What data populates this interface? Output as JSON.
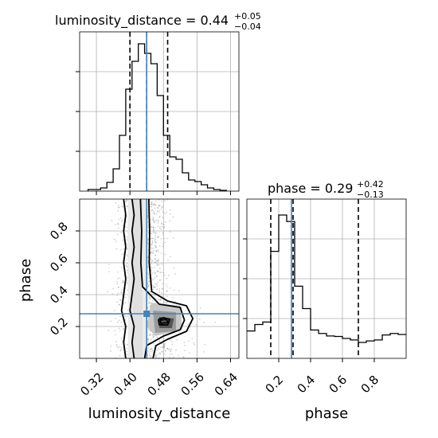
{
  "chart_data": {
    "type": "corner",
    "parameters": [
      "luminosity_distance",
      "phase"
    ],
    "xlabel_left": "luminosity_distance",
    "xlabel_right": "phase",
    "ylabel_left": "phase",
    "truth_color": "#4682b4",
    "line_color": "#000000",
    "grid": true,
    "luminosity_distance": {
      "title_prefix": "luminosity_distance = ",
      "median_label": "0.44",
      "plus_label": "+0.05",
      "minus_label": "−0.04",
      "range": [
        0.28,
        0.66
      ],
      "ticks": [
        0.32,
        0.4,
        0.48,
        0.56,
        0.64
      ],
      "tick_labels": [
        "0.32",
        "0.40",
        "0.48",
        "0.56",
        "0.64"
      ],
      "quantiles": [
        0.4,
        0.44,
        0.49
      ],
      "truth": 0.44,
      "hist_edges": [
        0.3,
        0.315,
        0.33,
        0.345,
        0.36,
        0.375,
        0.39,
        0.405,
        0.42,
        0.435,
        0.45,
        0.465,
        0.48,
        0.495,
        0.51,
        0.525,
        0.54,
        0.555,
        0.57,
        0.585,
        0.6,
        0.615,
        0.63
      ],
      "hist_counts": [
        2,
        2,
        4,
        11,
        28,
        70,
        128,
        163,
        185,
        173,
        160,
        120,
        70,
        43,
        40,
        23,
        14,
        12,
        8,
        4,
        2,
        1
      ],
      "hist_ymax": 200
    },
    "phase": {
      "title_prefix": "phase = ",
      "median_label": "0.29",
      "plus_label": "+0.42",
      "minus_label": "−0.13",
      "range": [
        0.0,
        1.0
      ],
      "ticks": [
        0.2,
        0.4,
        0.6,
        0.8
      ],
      "tick_labels": [
        "0.2",
        "0.4",
        "0.6",
        "0.8"
      ],
      "quantiles": [
        0.15,
        0.29,
        0.7
      ],
      "truth": 0.28,
      "hist_edges": [
        0.0,
        0.05,
        0.1,
        0.15,
        0.2,
        0.25,
        0.3,
        0.35,
        0.4,
        0.45,
        0.5,
        0.55,
        0.6,
        0.65,
        0.7,
        0.75,
        0.8,
        0.85,
        0.9,
        0.95,
        1.0
      ],
      "hist_counts": [
        55,
        68,
        73,
        215,
        288,
        275,
        145,
        100,
        57,
        50,
        45,
        44,
        40,
        37,
        32,
        35,
        37,
        47,
        50,
        48
      ],
      "hist_ymax": 320
    },
    "joint": {
      "dark_center": [
        0.482,
        0.22
      ],
      "contour_levels": 4
    }
  }
}
